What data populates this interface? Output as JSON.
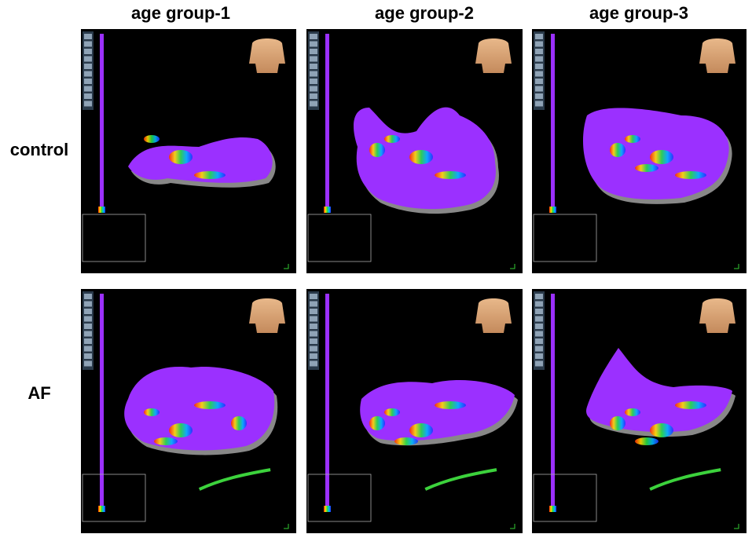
{
  "header": {
    "columns": [
      "age group-1",
      "age group-2",
      "age group-3"
    ]
  },
  "rows": [
    {
      "label": "control"
    },
    {
      "label": "AF"
    }
  ]
}
